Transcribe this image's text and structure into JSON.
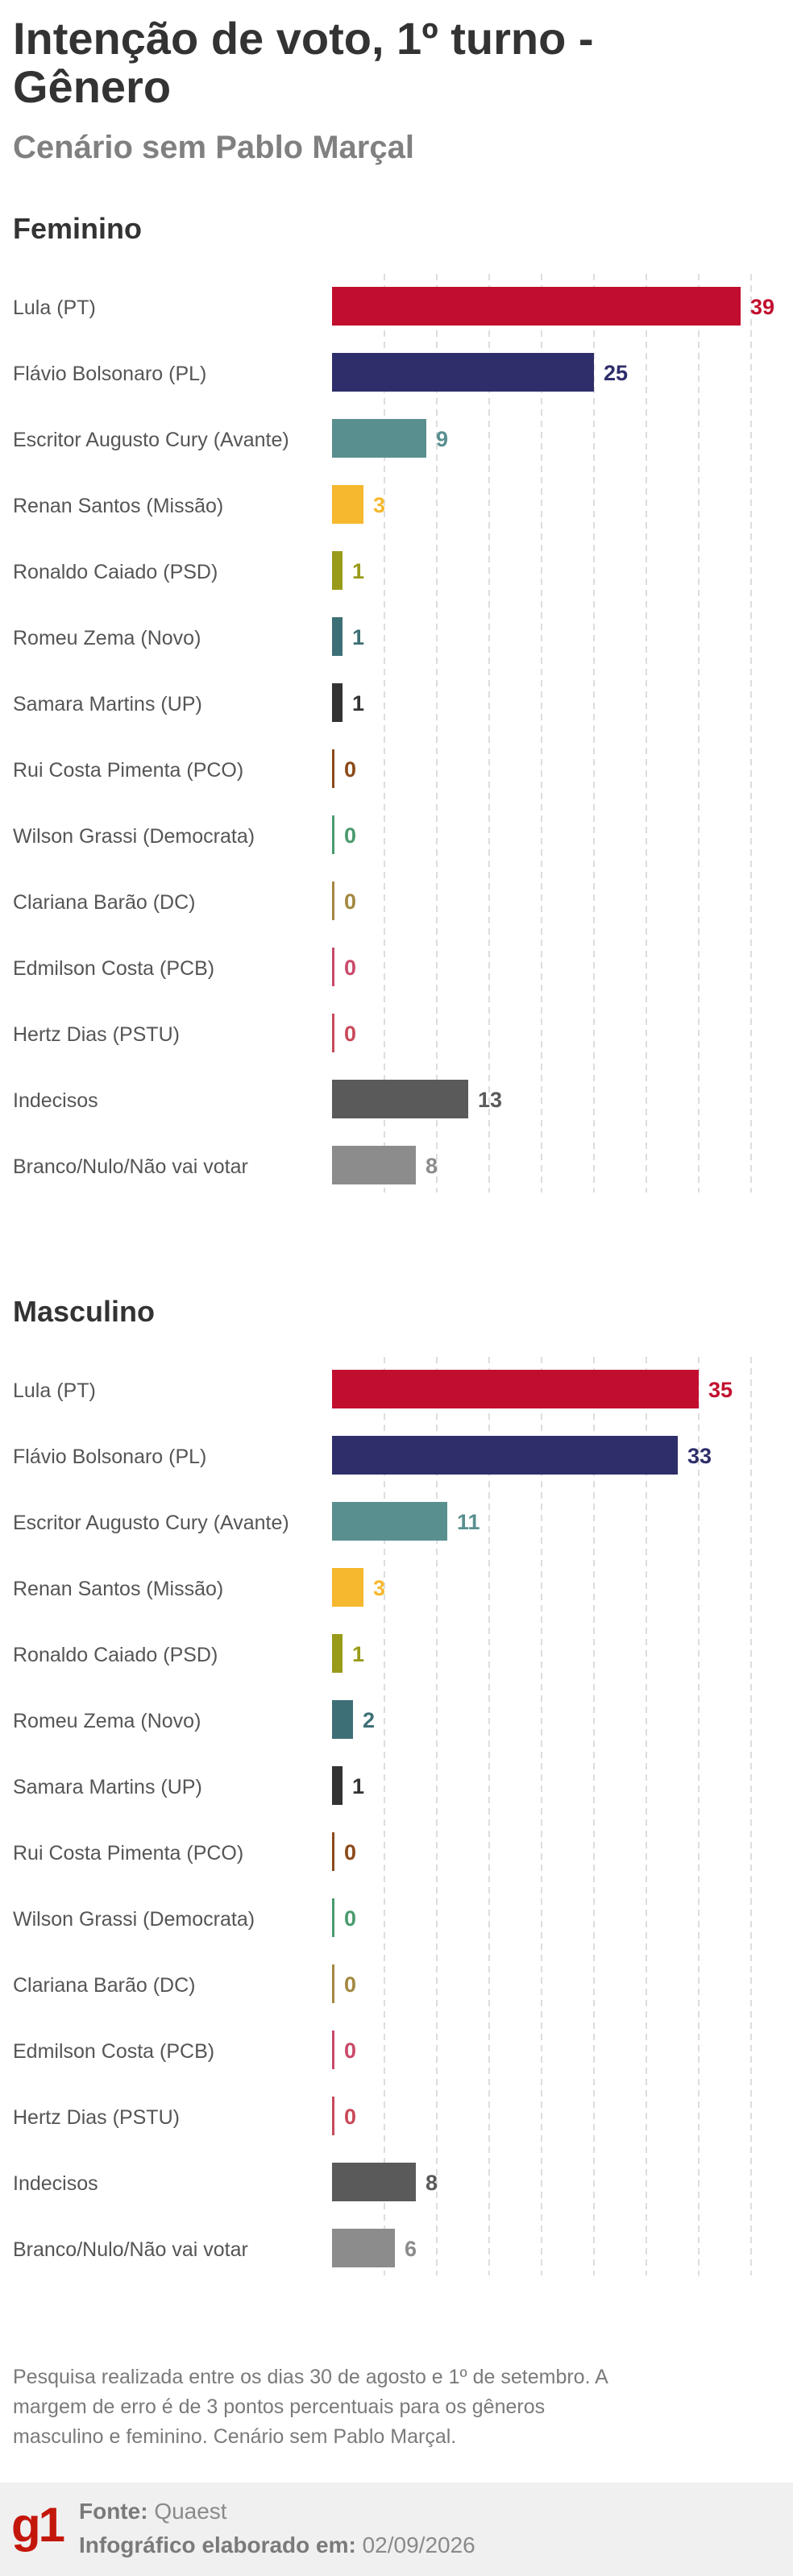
{
  "header": {
    "title": "Intenção de voto, 1º turno - Gênero",
    "subtitle": "Cenário sem Pablo Marçal"
  },
  "colors": {
    "lula": "#c20e2e",
    "flavio": "#2e2e6b",
    "cury": "#5a8f8f",
    "renan": "#f5b82e",
    "caiado": "#9a9a1a",
    "zema": "#3d6f76",
    "samara": "#333333",
    "rui": "#8b4a1a",
    "wilson": "#4a9a6f",
    "clariana": "#a38840",
    "edmilson": "#c94a6a",
    "hertz": "#c94a5a",
    "indecisos": "#5a5a5a",
    "branco": "#8c8c8c",
    "grid": "#dddddd"
  },
  "chart_data": [
    {
      "type": "bar",
      "title": "Feminino",
      "categories": [
        "Lula (PT)",
        "Flávio Bolsonaro (PL)",
        "Escritor Augusto Cury (Avante)",
        "Renan Santos (Missão)",
        "Ronaldo Caiado (PSD)",
        "Romeu Zema (Novo)",
        "Samara Martins (UP)",
        "Rui Costa Pimenta (PCO)",
        "Wilson Grassi (Democrata)",
        "Clariana Barão (DC)",
        "Edmilson Costa (PCB)",
        "Hertz Dias (PSTU)",
        "Indecisos",
        "Branco/Nulo/Não vai votar"
      ],
      "values": [
        39,
        25,
        9,
        3,
        1,
        1,
        1,
        0,
        0,
        0,
        0,
        0,
        13,
        8
      ],
      "xlim": [
        0,
        40
      ],
      "grid": true,
      "orientation": "horizontal"
    },
    {
      "type": "bar",
      "title": "Masculino",
      "categories": [
        "Lula (PT)",
        "Flávio Bolsonaro (PL)",
        "Escritor Augusto Cury (Avante)",
        "Renan Santos (Missão)",
        "Ronaldo Caiado (PSD)",
        "Romeu Zema (Novo)",
        "Samara Martins (UP)",
        "Rui Costa Pimenta (PCO)",
        "Wilson Grassi (Democrata)",
        "Clariana Barão (DC)",
        "Edmilson Costa (PCB)",
        "Hertz Dias (PSTU)",
        "Indecisos",
        "Branco/Nulo/Não vai votar"
      ],
      "values": [
        35,
        33,
        11,
        3,
        1,
        2,
        1,
        0,
        0,
        0,
        0,
        0,
        8,
        6
      ],
      "xlim": [
        0,
        40
      ],
      "grid": true,
      "orientation": "horizontal"
    }
  ],
  "footer": {
    "note": "Pesquisa realizada entre os dias 30 de agosto e 1º de setembro. A margem de erro é de 3 pontos percentuais para os gêneros masculino e feminino. Cenário sem Pablo Marçal.",
    "logo": "g1",
    "source_label": "Fonte:",
    "source_value": "Quaest",
    "made_label": "Infográfico elaborado em:",
    "made_value": "02/09/2026"
  }
}
